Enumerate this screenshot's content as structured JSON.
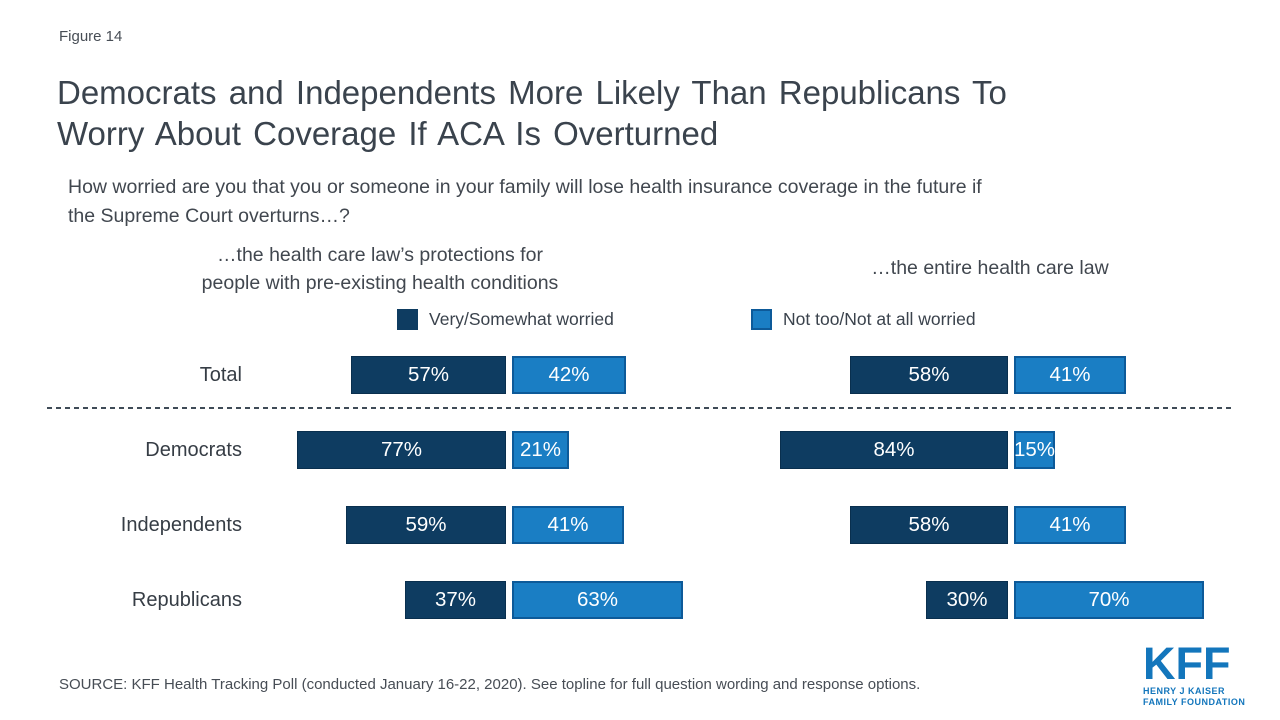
{
  "figure_label": "Figure 14",
  "title": {
    "line1": "Democrats and Independents More Likely Than Republicans To",
    "line2": "Worry About Coverage If ACA Is Overturned"
  },
  "question": {
    "line1": "How worried are you that you or someone in your family will lose health insurance coverage in the future if",
    "line2": "the Supreme Court overturns…?"
  },
  "panel_headers": {
    "left_line1": "…the health care law’s protections for",
    "left_line2": "people with pre-existing health conditions",
    "right": "…the entire health care law"
  },
  "legend": {
    "items": [
      {
        "label": "Very/Somewhat worried",
        "color_key": "dark"
      },
      {
        "label": "Not too/Not at all worried",
        "color_key": "light"
      }
    ]
  },
  "colors": {
    "dark": "#0e3c61",
    "dark_border": "#092f4e",
    "light": "#1a7ec4",
    "light_border": "#0d5a99",
    "logo_blue": "#1376bc"
  },
  "chart_data": [
    {
      "type": "bar",
      "orientation": "horizontal",
      "title": "…the health care law’s protections for people with pre-existing health conditions",
      "categories": [
        "Total",
        "Democrats",
        "Independents",
        "Republicans"
      ],
      "series": [
        {
          "name": "Very/Somewhat worried",
          "values": [
            57,
            77,
            59,
            37
          ]
        },
        {
          "name": "Not too/Not at all worried",
          "values": [
            42,
            21,
            41,
            63
          ]
        }
      ],
      "value_suffix": "%",
      "xlim": [
        0,
        100
      ],
      "legend_position": "top",
      "grid": false
    },
    {
      "type": "bar",
      "orientation": "horizontal",
      "title": "…the entire health care law",
      "categories": [
        "Total",
        "Democrats",
        "Independents",
        "Republicans"
      ],
      "series": [
        {
          "name": "Very/Somewhat worried",
          "values": [
            58,
            84,
            58,
            30
          ]
        },
        {
          "name": "Not too/Not at all worried",
          "values": [
            41,
            15,
            41,
            70
          ]
        }
      ],
      "value_suffix": "%",
      "xlim": [
        0,
        100
      ],
      "legend_position": "top",
      "grid": false
    }
  ],
  "source": "SOURCE: KFF Health Tracking Poll (conducted January 16-22, 2020). See topline for full question wording and response options.",
  "logo": {
    "wordmark": "KFF",
    "sub_line1": "HENRY J KAISER",
    "sub_line2": "FAMILY FOUNDATION"
  }
}
